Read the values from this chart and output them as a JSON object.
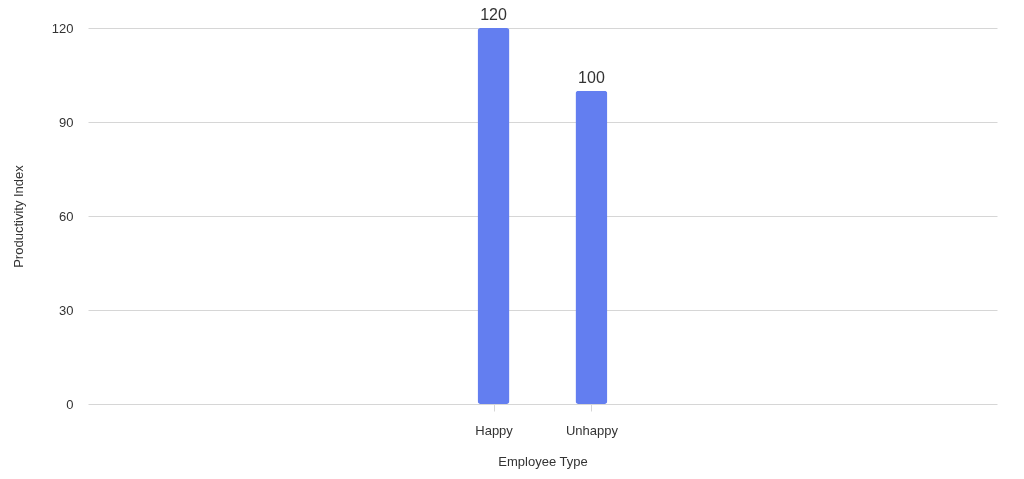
{
  "chart_data": {
    "type": "bar",
    "xlabel": "Employee Type",
    "ylabel": "Productivity Index",
    "categories": [
      "Happy",
      "Unhappy"
    ],
    "values": [
      120,
      100
    ],
    "color": "#637ef0",
    "ylim": [
      0,
      120
    ],
    "yticks": [
      0,
      30,
      60,
      90,
      120
    ],
    "grid": "y",
    "data_labels": true
  }
}
